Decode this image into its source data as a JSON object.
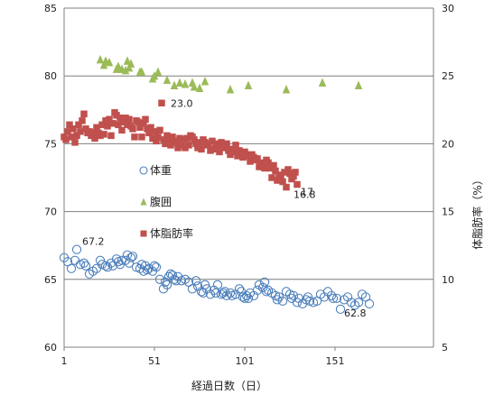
{
  "chart_data": {
    "type": "scatter",
    "xlabel": "経過日数（日）",
    "ylabel_right": "体脂肪率（%）",
    "ylabel_left": "",
    "x_ticks": [
      "1",
      "51",
      "101",
      "151"
    ],
    "x_range": [
      1,
      201
    ],
    "y_left_ticks": [
      "60",
      "65",
      "70",
      "75",
      "80",
      "85"
    ],
    "y_left_range": [
      60,
      85
    ],
    "y_right_ticks": [
      "5",
      "10",
      "15",
      "20",
      "25",
      "30"
    ],
    "y_right_range": [
      5,
      30
    ],
    "grid": "horizontal",
    "legend_position": "inside-left",
    "colors": {
      "weight": "#4f81bd",
      "waist": "#9bbb59",
      "bodyfat": "#c0504d",
      "grid": "#7f7f7f"
    },
    "series": [
      {
        "name": "体重",
        "axis": "left",
        "marker": "circle-open",
        "points": [
          [
            1,
            66.6
          ],
          [
            3,
            66.3
          ],
          [
            5,
            65.8
          ],
          [
            7,
            66.4
          ],
          [
            8,
            67.2
          ],
          [
            10,
            66.1
          ],
          [
            12,
            66.2
          ],
          [
            13,
            66.0
          ],
          [
            15,
            65.4
          ],
          [
            17,
            65.6
          ],
          [
            19,
            65.8
          ],
          [
            21,
            66.4
          ],
          [
            22,
            66.1
          ],
          [
            24,
            66.0
          ],
          [
            25,
            65.9
          ],
          [
            27,
            66.2
          ],
          [
            28,
            66.0
          ],
          [
            30,
            66.5
          ],
          [
            31,
            66.3
          ],
          [
            32,
            66.1
          ],
          [
            33,
            66.4
          ],
          [
            35,
            66.4
          ],
          [
            36,
            66.8
          ],
          [
            37,
            66.2
          ],
          [
            38,
            66.6
          ],
          [
            39,
            66.7
          ],
          [
            41,
            65.9
          ],
          [
            43,
            65.8
          ],
          [
            44,
            66.1
          ],
          [
            45,
            65.6
          ],
          [
            46,
            66.0
          ],
          [
            47,
            65.7
          ],
          [
            48,
            65.8
          ],
          [
            50,
            65.6
          ],
          [
            51,
            66.0
          ],
          [
            52,
            65.9
          ],
          [
            54,
            65.0
          ],
          [
            56,
            64.3
          ],
          [
            57,
            64.8
          ],
          [
            58,
            64.6
          ],
          [
            59,
            65.2
          ],
          [
            60,
            65.4
          ],
          [
            61,
            65.3
          ],
          [
            62,
            65.0
          ],
          [
            63,
            64.9
          ],
          [
            64,
            65.2
          ],
          [
            66,
            64.9
          ],
          [
            68,
            65.0
          ],
          [
            70,
            64.8
          ],
          [
            72,
            64.3
          ],
          [
            74,
            64.9
          ],
          [
            75,
            64.5
          ],
          [
            77,
            64.1
          ],
          [
            78,
            64.0
          ],
          [
            79,
            64.6
          ],
          [
            80,
            64.3
          ],
          [
            82,
            63.9
          ],
          [
            84,
            64.2
          ],
          [
            85,
            64.0
          ],
          [
            86,
            64.6
          ],
          [
            88,
            63.9
          ],
          [
            89,
            64.0
          ],
          [
            90,
            64.1
          ],
          [
            91,
            63.8
          ],
          [
            93,
            64.0
          ],
          [
            94,
            63.8
          ],
          [
            96,
            63.9
          ],
          [
            98,
            64.3
          ],
          [
            99,
            64.1
          ],
          [
            100,
            63.7
          ],
          [
            101,
            63.6
          ],
          [
            102,
            63.8
          ],
          [
            103,
            63.6
          ],
          [
            104,
            64.0
          ],
          [
            106,
            63.8
          ],
          [
            108,
            64.2
          ],
          [
            109,
            64.6
          ],
          [
            111,
            64.4
          ],
          [
            112,
            64.8
          ],
          [
            113,
            64.1
          ],
          [
            114,
            64.2
          ],
          [
            116,
            64.0
          ],
          [
            118,
            63.8
          ],
          [
            119,
            63.5
          ],
          [
            120,
            63.7
          ],
          [
            122,
            63.4
          ],
          [
            124,
            64.1
          ],
          [
            126,
            63.9
          ],
          [
            127,
            63.6
          ],
          [
            128,
            63.8
          ],
          [
            130,
            63.3
          ],
          [
            131,
            63.6
          ],
          [
            133,
            63.2
          ],
          [
            135,
            63.5
          ],
          [
            136,
            63.7
          ],
          [
            137,
            63.4
          ],
          [
            139,
            63.3
          ],
          [
            141,
            63.4
          ],
          [
            143,
            63.9
          ],
          [
            145,
            63.7
          ],
          [
            147,
            64.1
          ],
          [
            149,
            63.8
          ],
          [
            150,
            63.6
          ],
          [
            152,
            63.6
          ],
          [
            154,
            62.8
          ],
          [
            156,
            63.5
          ],
          [
            158,
            63.7
          ],
          [
            160,
            63.3
          ],
          [
            162,
            63.1
          ],
          [
            164,
            63.3
          ],
          [
            166,
            63.9
          ],
          [
            168,
            63.7
          ],
          [
            170,
            63.2
          ]
        ]
      },
      {
        "name": "腹囲",
        "axis": "left",
        "marker": "triangle-filled",
        "points": [
          [
            21,
            81.2
          ],
          [
            23,
            80.8
          ],
          [
            24,
            81.1
          ],
          [
            26,
            81.0
          ],
          [
            30,
            80.5
          ],
          [
            31,
            80.7
          ],
          [
            33,
            80.5
          ],
          [
            35,
            80.4
          ],
          [
            36,
            81.1
          ],
          [
            37,
            80.6
          ],
          [
            38,
            80.9
          ],
          [
            43,
            80.3
          ],
          [
            44,
            80.3
          ],
          [
            50,
            79.8
          ],
          [
            51,
            80.0
          ],
          [
            53,
            80.3
          ],
          [
            58,
            79.7
          ],
          [
            62,
            79.3
          ],
          [
            65,
            79.5
          ],
          [
            68,
            79.4
          ],
          [
            72,
            79.5
          ],
          [
            73,
            79.2
          ],
          [
            76,
            79.1
          ],
          [
            79,
            79.6
          ],
          [
            93,
            79.0
          ],
          [
            103,
            79.3
          ],
          [
            124,
            79.0
          ],
          [
            144,
            79.5
          ],
          [
            164,
            79.3
          ]
        ]
      },
      {
        "name": "体脂肪率",
        "axis": "right",
        "marker": "square-filled",
        "points": [
          [
            1,
            20.5
          ],
          [
            2,
            20.3
          ],
          [
            3,
            20.9
          ],
          [
            4,
            21.4
          ],
          [
            5,
            20.5
          ],
          [
            6,
            21.1
          ],
          [
            7,
            20.1
          ],
          [
            8,
            20.6
          ],
          [
            9,
            21.4
          ],
          [
            10,
            20.9
          ],
          [
            11,
            21.7
          ],
          [
            12,
            22.2
          ],
          [
            13,
            21.1
          ],
          [
            14,
            20.8
          ],
          [
            15,
            20.9
          ],
          [
            16,
            20.6
          ],
          [
            17,
            20.8
          ],
          [
            18,
            20.4
          ],
          [
            19,
            21.2
          ],
          [
            20,
            20.8
          ],
          [
            21,
            20.6
          ],
          [
            22,
            21.4
          ],
          [
            23,
            20.7
          ],
          [
            24,
            21.7
          ],
          [
            25,
            21.3
          ],
          [
            26,
            21.8
          ],
          [
            27,
            20.6
          ],
          [
            28,
            21.5
          ],
          [
            29,
            22.3
          ],
          [
            30,
            22.1
          ],
          [
            31,
            21.4
          ],
          [
            32,
            21.9
          ],
          [
            33,
            21.0
          ],
          [
            34,
            21.6
          ],
          [
            35,
            21.9
          ],
          [
            36,
            21.4
          ],
          [
            37,
            21.8
          ],
          [
            38,
            21.3
          ],
          [
            39,
            21.1
          ],
          [
            40,
            20.5
          ],
          [
            41,
            21.7
          ],
          [
            42,
            21.6
          ],
          [
            43,
            21.2
          ],
          [
            44,
            20.5
          ],
          [
            45,
            21.5
          ],
          [
            46,
            21.8
          ],
          [
            47,
            21.1
          ],
          [
            48,
            20.8
          ],
          [
            49,
            21.2
          ],
          [
            50,
            20.4
          ],
          [
            51,
            20.9
          ],
          [
            52,
            20.2
          ],
          [
            53,
            20.5
          ],
          [
            54,
            21.0
          ],
          [
            55,
            23.0
          ],
          [
            56,
            20.3
          ],
          [
            57,
            20.0
          ],
          [
            58,
            20.6
          ],
          [
            59,
            20.3
          ],
          [
            60,
            19.9
          ],
          [
            61,
            20.5
          ],
          [
            62,
            20.2
          ],
          [
            63,
            20.1
          ],
          [
            64,
            19.7
          ],
          [
            65,
            20.4
          ],
          [
            66,
            19.9
          ],
          [
            67,
            20.3
          ],
          [
            68,
            19.7
          ],
          [
            69,
            20.4
          ],
          [
            70,
            19.9
          ],
          [
            71,
            20.6
          ],
          [
            72,
            20.5
          ],
          [
            73,
            20.3
          ],
          [
            74,
            20.0
          ],
          [
            75,
            19.7
          ],
          [
            76,
            20.1
          ],
          [
            77,
            19.6
          ],
          [
            78,
            20.3
          ],
          [
            79,
            20.1
          ],
          [
            80,
            19.9
          ],
          [
            81,
            20.0
          ],
          [
            82,
            19.5
          ],
          [
            83,
            20.2
          ],
          [
            84,
            19.6
          ],
          [
            85,
            20.0
          ],
          [
            86,
            19.8
          ],
          [
            87,
            19.4
          ],
          [
            88,
            20.1
          ],
          [
            89,
            19.9
          ],
          [
            90,
            19.7
          ],
          [
            91,
            20.0
          ],
          [
            92,
            19.5
          ],
          [
            93,
            19.2
          ],
          [
            94,
            19.6
          ],
          [
            95,
            19.4
          ],
          [
            96,
            19.9
          ],
          [
            97,
            19.1
          ],
          [
            98,
            19.5
          ],
          [
            99,
            19.3
          ],
          [
            100,
            19.0
          ],
          [
            101,
            19.4
          ],
          [
            102,
            19.2
          ],
          [
            103,
            19.1
          ],
          [
            104,
            18.7
          ],
          [
            105,
            19.2
          ],
          [
            106,
            19.0
          ],
          [
            107,
            18.8
          ],
          [
            108,
            18.9
          ],
          [
            109,
            18.3
          ],
          [
            110,
            18.6
          ],
          [
            111,
            18.3
          ],
          [
            112,
            18.2
          ],
          [
            113,
            18.8
          ],
          [
            114,
            18.6
          ],
          [
            115,
            18.2
          ],
          [
            116,
            17.5
          ],
          [
            117,
            18.4
          ],
          [
            118,
            18.0
          ],
          [
            119,
            17.3
          ],
          [
            120,
            17.7
          ],
          [
            121,
            17.5
          ],
          [
            122,
            17.2
          ],
          [
            123,
            17.9
          ],
          [
            124,
            16.8
          ],
          [
            125,
            18.1
          ],
          [
            126,
            17.8
          ],
          [
            127,
            17.4
          ],
          [
            128,
            17.6
          ],
          [
            129,
            17.9
          ],
          [
            130,
            17.0
          ]
        ]
      }
    ],
    "annotations": [
      {
        "text": "67.2",
        "series": "体重",
        "x": 8,
        "y": 67.2
      },
      {
        "text": "62.8",
        "series": "体重",
        "x": 154,
        "y": 62.8
      },
      {
        "text": "23.0",
        "series": "体脂肪率",
        "x": 55,
        "y": 23.0
      },
      {
        "text": "16.8",
        "series": "体脂肪率",
        "x": 124,
        "y": 16.8
      },
      {
        "text": "17",
        "series": "体脂肪率",
        "x": 130,
        "y": 17.0
      }
    ]
  }
}
